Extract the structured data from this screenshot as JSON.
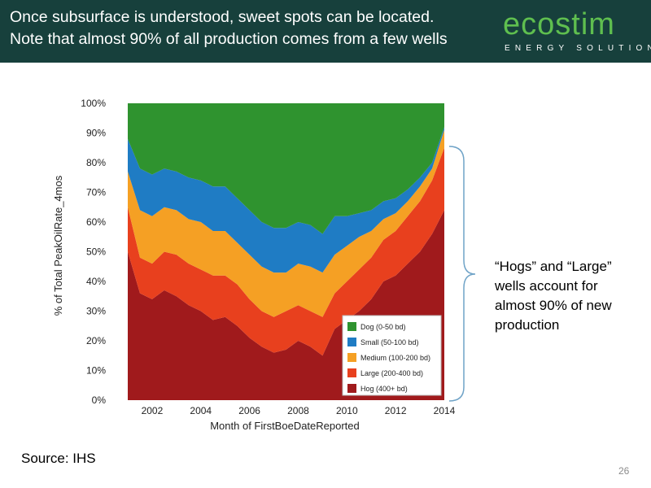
{
  "header": {
    "title_line1": "Once subsurface is understood, sweet spots can be located.",
    "title_line2": "Note that almost 90% of all production comes from a few wells"
  },
  "logo": {
    "word": "ecostim",
    "subtitle": "ENERGY SOLUTIONS",
    "colors": {
      "word": "#5fbf4f",
      "subtitle": "#ffffff"
    }
  },
  "theme": {
    "header_bg": "#17403c",
    "bracket": "#6fa3c7"
  },
  "callout": {
    "text": "“Hogs” and “Large” wells account for almost 90% of new production"
  },
  "source": {
    "text": "Source:  IHS"
  },
  "page_number": "26",
  "chart_data": {
    "type": "area",
    "stacked": true,
    "xlabel": "Month of FirstBoeDateReported",
    "ylabel": "% of Total PeakOilRate_4mos",
    "xlim": [
      2000.9,
      2014.0
    ],
    "ylim": [
      0,
      100
    ],
    "x_ticks": [
      "2002",
      "2004",
      "2006",
      "2008",
      "2010",
      "2012",
      "2014"
    ],
    "y_ticks": [
      "0%",
      "10%",
      "20%",
      "30%",
      "40%",
      "50%",
      "60%",
      "70%",
      "80%",
      "90%",
      "100%"
    ],
    "grid": false,
    "legend_position": "bottom-right",
    "x": [
      2001.0,
      2001.5,
      2002.0,
      2002.5,
      2003.0,
      2003.5,
      2004.0,
      2004.5,
      2005.0,
      2005.5,
      2006.0,
      2006.5,
      2007.0,
      2007.5,
      2008.0,
      2008.5,
      2009.0,
      2009.5,
      2010.0,
      2010.5,
      2011.0,
      2011.5,
      2012.0,
      2012.5,
      2013.0,
      2013.5,
      2014.0
    ],
    "series": [
      {
        "name": "Hog (400+ bd)",
        "color": "#a01a1c",
        "values": [
          50,
          36,
          34,
          37,
          35,
          32,
          30,
          27,
          28,
          25,
          21,
          18,
          16,
          17,
          20,
          18,
          15,
          24,
          27,
          30,
          34,
          40,
          42,
          46,
          50,
          56,
          64
        ]
      },
      {
        "name": "Large (200-400 bd)",
        "color": "#e8401e",
        "values": [
          15,
          12,
          12,
          13,
          14,
          14,
          14,
          15,
          14,
          14,
          13,
          12,
          12,
          13,
          12,
          12,
          13,
          12,
          13,
          14,
          14,
          14,
          15,
          16,
          17,
          18,
          21
        ]
      },
      {
        "name": "Medium (100-200 bd)",
        "color": "#f5a024",
        "values": [
          12,
          16,
          16,
          15,
          15,
          15,
          16,
          15,
          15,
          14,
          15,
          15,
          15,
          13,
          14,
          15,
          15,
          13,
          12,
          11,
          9,
          7,
          6,
          5,
          5,
          4,
          6
        ]
      },
      {
        "name": "Small (50-100 bd)",
        "color": "#1f7cc4",
        "values": [
          11,
          14,
          14,
          13,
          13,
          14,
          14,
          15,
          15,
          15,
          15,
          15,
          15,
          15,
          14,
          14,
          13,
          13,
          10,
          8,
          7,
          6,
          5,
          4,
          3,
          2,
          1
        ]
      },
      {
        "name": "Dog (0-50 bd)",
        "color": "#2f932f",
        "values": [
          12,
          22,
          24,
          22,
          23,
          25,
          26,
          28,
          28,
          32,
          36,
          40,
          42,
          42,
          40,
          41,
          44,
          38,
          38,
          37,
          36,
          33,
          32,
          29,
          25,
          20,
          8
        ]
      }
    ]
  }
}
